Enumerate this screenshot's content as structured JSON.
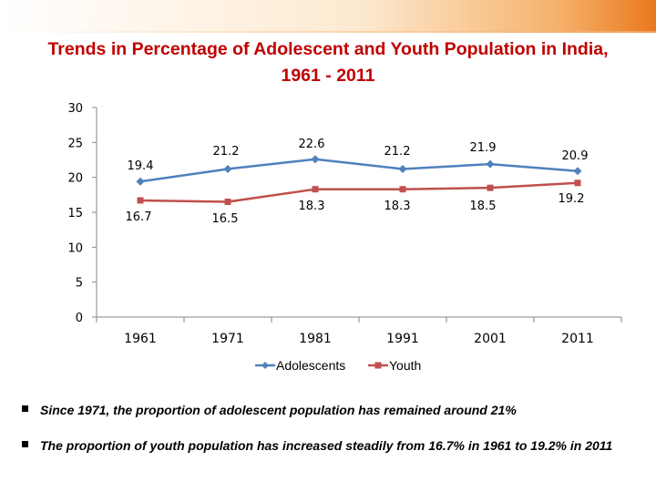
{
  "title": "Trends in Percentage of Adolescent and Youth Population in India, 1961 - 2011",
  "colors": {
    "adolescents": "#4f81bd",
    "youth": "#c0504d",
    "title": "#c00000",
    "axis": "#868686"
  },
  "chart_data": {
    "type": "line",
    "categories": [
      "1961",
      "1971",
      "1981",
      "1991",
      "2001",
      "2011"
    ],
    "series": [
      {
        "name": "Adolescents",
        "values": [
          19.4,
          21.2,
          22.6,
          21.2,
          21.9,
          20.9
        ],
        "marker": "diamond"
      },
      {
        "name": "Youth",
        "values": [
          16.7,
          16.5,
          18.3,
          18.3,
          18.5,
          19.2
        ],
        "marker": "square"
      }
    ],
    "ylim": [
      0,
      30
    ],
    "yticks": [
      "0",
      "5",
      "10",
      "15",
      "20",
      "25",
      "30"
    ],
    "data_labels": {
      "Adolescents": [
        "19.4",
        "21.2",
        "22.6",
        "21.2",
        "21.9",
        "20.9"
      ],
      "Youth": [
        "16.7",
        "16.5",
        "18.3",
        "18.3",
        "18.5",
        "19.2"
      ]
    },
    "legend": "bottom",
    "grid": false,
    "xlabel": "",
    "ylabel": ""
  },
  "notes": [
    "Since 1971, the proportion of adolescent population has remained around 21%",
    "The proportion of youth population has increased steadily from 16.7% in 1961 to 19.2% in 2011"
  ]
}
